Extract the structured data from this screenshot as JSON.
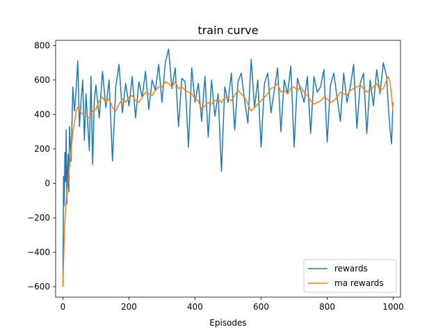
{
  "chart_data": {
    "type": "line",
    "title": "train curve",
    "xlabel": "Episodes",
    "ylabel": "",
    "xlim": [
      -22,
      1022
    ],
    "ylim": [
      -660,
      830
    ],
    "xticks": [
      0,
      200,
      400,
      600,
      800,
      1000
    ],
    "yticks": [
      -600,
      -400,
      -200,
      0,
      200,
      400,
      600,
      800
    ],
    "xtick_labels": [
      "0",
      "200",
      "400",
      "600",
      "800",
      "1000"
    ],
    "ytick_labels": [
      "−600",
      "−400",
      "−200",
      "0",
      "200",
      "400",
      "600",
      "800"
    ],
    "grid": false,
    "legend_position": "lower-right",
    "series": [
      {
        "name": "rewards",
        "color": "#1f77b4",
        "x": [
          0,
          2,
          4,
          6,
          8,
          10,
          12,
          14,
          16,
          18,
          20,
          25,
          30,
          35,
          40,
          45,
          50,
          55,
          60,
          65,
          70,
          75,
          80,
          85,
          90,
          95,
          100,
          110,
          120,
          130,
          140,
          150,
          160,
          170,
          180,
          190,
          200,
          210,
          220,
          230,
          240,
          250,
          260,
          270,
          280,
          290,
          300,
          310,
          320,
          330,
          340,
          350,
          360,
          370,
          380,
          390,
          400,
          410,
          420,
          430,
          440,
          450,
          460,
          470,
          480,
          490,
          500,
          510,
          520,
          530,
          540,
          550,
          560,
          570,
          580,
          590,
          600,
          610,
          620,
          630,
          640,
          650,
          660,
          670,
          680,
          690,
          700,
          710,
          720,
          730,
          740,
          750,
          760,
          770,
          780,
          790,
          800,
          810,
          820,
          830,
          840,
          850,
          860,
          870,
          880,
          890,
          900,
          910,
          920,
          930,
          940,
          950,
          960,
          970,
          980,
          985,
          990,
          995,
          999
        ],
        "values": [
          -600,
          40,
          -130,
          180,
          10,
          310,
          -120,
          60,
          170,
          -50,
          330,
          130,
          560,
          420,
          540,
          710,
          330,
          480,
          600,
          250,
          520,
          350,
          190,
          620,
          110,
          480,
          570,
          380,
          650,
          440,
          600,
          130,
          560,
          690,
          410,
          580,
          450,
          620,
          380,
          590,
          500,
          650,
          430,
          600,
          540,
          690,
          470,
          700,
          780,
          550,
          670,
          330,
          610,
          590,
          210,
          670,
          470,
          580,
          360,
          620,
          270,
          600,
          390,
          520,
          70,
          560,
          470,
          640,
          310,
          590,
          640,
          480,
          350,
          720,
          440,
          600,
          210,
          580,
          640,
          410,
          540,
          670,
          300,
          600,
          520,
          680,
          210,
          610,
          540,
          470,
          620,
          290,
          620,
          530,
          560,
          660,
          240,
          570,
          640,
          500,
          360,
          640,
          470,
          560,
          690,
          320,
          580,
          640,
          290,
          600,
          450,
          660,
          520,
          700,
          620,
          450,
          320,
          230,
          470
        ]
      },
      {
        "name": "ma rewards",
        "color": "#ff7f0e",
        "x": [
          0,
          5,
          10,
          15,
          20,
          25,
          30,
          35,
          40,
          45,
          50,
          55,
          60,
          70,
          80,
          90,
          100,
          110,
          120,
          130,
          140,
          150,
          160,
          170,
          180,
          190,
          200,
          210,
          220,
          230,
          240,
          250,
          260,
          270,
          280,
          290,
          300,
          310,
          320,
          330,
          340,
          350,
          360,
          370,
          380,
          390,
          400,
          410,
          420,
          430,
          440,
          450,
          460,
          470,
          480,
          490,
          500,
          510,
          520,
          530,
          540,
          550,
          560,
          570,
          580,
          590,
          600,
          610,
          620,
          630,
          640,
          650,
          660,
          670,
          680,
          690,
          700,
          710,
          720,
          730,
          740,
          750,
          760,
          770,
          780,
          790,
          800,
          810,
          820,
          830,
          840,
          850,
          860,
          870,
          880,
          890,
          900,
          910,
          920,
          930,
          940,
          950,
          960,
          970,
          980,
          985,
          990,
          995,
          999
        ],
        "values": [
          -600,
          -250,
          -100,
          0,
          100,
          180,
          300,
          350,
          420,
          440,
          430,
          410,
          400,
          390,
          380,
          420,
          430,
          480,
          500,
          470,
          490,
          440,
          420,
          460,
          490,
          470,
          500,
          510,
          480,
          470,
          500,
          530,
          520,
          510,
          540,
          560,
          560,
          590,
          580,
          560,
          590,
          550,
          560,
          540,
          530,
          520,
          490,
          480,
          430,
          450,
          470,
          460,
          480,
          490,
          470,
          500,
          490,
          480,
          510,
          540,
          520,
          500,
          460,
          420,
          440,
          460,
          480,
          500,
          520,
          550,
          560,
          580,
          530,
          540,
          520,
          550,
          560,
          540,
          560,
          530,
          510,
          480,
          460,
          470,
          480,
          500,
          490,
          470,
          480,
          500,
          530,
          520,
          510,
          540,
          550,
          560,
          570,
          550,
          530,
          540,
          560,
          580,
          540,
          550,
          600,
          620,
          590,
          510,
          420
        ]
      }
    ]
  }
}
